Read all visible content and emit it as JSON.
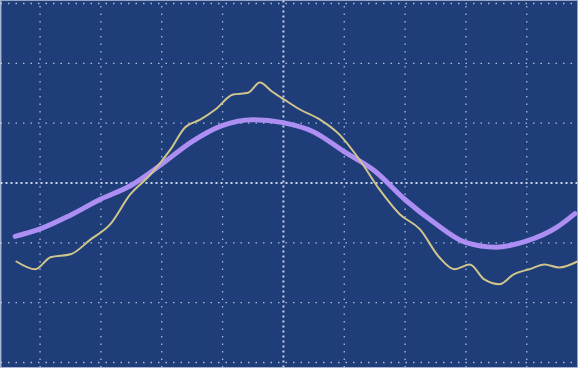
{
  "chart_data": {
    "type": "line",
    "xlim": [
      -4.65,
      4.85
    ],
    "ylim": [
      -3.1,
      3.05
    ],
    "xticks": [
      -4,
      -3,
      -2,
      -1,
      0,
      1,
      2,
      3,
      4
    ],
    "yticks": [
      -3,
      -2,
      -1,
      0,
      1,
      2,
      3
    ],
    "grid": true,
    "tick_labels": false,
    "series": [
      {
        "color": "#ad8ef2",
        "line_style": "solid",
        "x": [
          -4.4,
          -4.0,
          -3.5,
          -3.0,
          -2.5,
          -2.0,
          -1.5,
          -1.0,
          -0.5,
          0.0,
          0.5,
          1.0,
          1.5,
          2.0,
          2.5,
          3.0,
          3.5,
          4.0,
          4.5,
          4.8
        ],
        "values": [
          -0.9,
          -0.78,
          -0.55,
          -0.28,
          -0.05,
          0.3,
          0.68,
          0.95,
          1.05,
          1.0,
          0.85,
          0.52,
          0.2,
          -0.28,
          -0.68,
          -1.0,
          -1.08,
          -0.98,
          -0.75,
          -0.52
        ]
      },
      {
        "color": "#cfc58c",
        "line_style": "solid",
        "x": [
          -4.38,
          -4.07,
          -3.82,
          -3.49,
          -3.16,
          -2.84,
          -2.51,
          -2.18,
          -1.85,
          -1.61,
          -1.36,
          -1.11,
          -0.82,
          -0.57,
          -0.38,
          -0.18,
          0.03,
          0.28,
          0.61,
          0.93,
          1.26,
          1.59,
          1.92,
          2.25,
          2.57,
          2.82,
          3.07,
          3.31,
          3.56,
          3.8,
          4.05,
          4.3,
          4.54,
          4.84
        ],
        "values": [
          -1.32,
          -1.45,
          -1.25,
          -1.2,
          -0.95,
          -0.7,
          -0.2,
          0.13,
          0.55,
          0.92,
          1.05,
          1.22,
          1.47,
          1.5,
          1.67,
          1.52,
          1.38,
          1.22,
          1.05,
          0.8,
          0.38,
          -0.12,
          -0.53,
          -0.78,
          -1.25,
          -1.45,
          -1.37,
          -1.62,
          -1.7,
          -1.53,
          -1.45,
          -1.37,
          -1.42,
          -1.32
        ]
      }
    ]
  }
}
